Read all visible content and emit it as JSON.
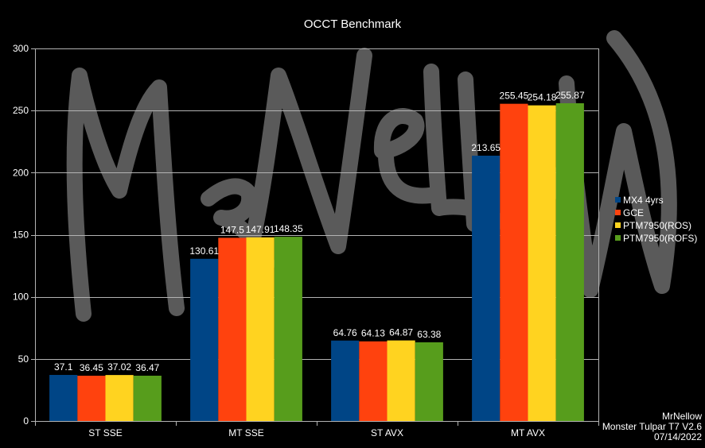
{
  "chart_data": {
    "type": "bar",
    "title": "OCCT Benchmark",
    "xlabel": "",
    "ylabel": "",
    "ylim": [
      0,
      300
    ],
    "yticks": [
      0,
      50,
      100,
      150,
      200,
      250,
      300
    ],
    "grid": true,
    "legend_position": "right",
    "categories": [
      "ST SSE",
      "MT SSE",
      "ST AVX",
      "MT AVX"
    ],
    "series": [
      {
        "name": "MX4 4yrs",
        "color": "#004586",
        "values": [
          37.1,
          130.61,
          64.76,
          213.65
        ]
      },
      {
        "name": "GCE",
        "color": "#ff420e",
        "values": [
          36.45,
          147.5,
          64.13,
          255.45
        ]
      },
      {
        "name": "PTM7950(ROS)",
        "color": "#ffd320",
        "values": [
          37.02,
          147.91,
          64.87,
          254.18
        ]
      },
      {
        "name": "PTM7950(ROFS)",
        "color": "#579d1c",
        "values": [
          36.47,
          148.35,
          63.38,
          255.87
        ]
      }
    ],
    "value_labels": [
      [
        "37.1",
        "130.61",
        "64.76",
        "213.65"
      ],
      [
        "36.45",
        "147.5",
        "64.13",
        "255.45"
      ],
      [
        "37.02",
        "147.91",
        "64.87",
        "254.18"
      ],
      [
        "36.47",
        "148.35",
        "63.38",
        "255.87"
      ]
    ]
  },
  "credit": {
    "author": "MrNellow",
    "device": "Monster Tulpar T7 V2.6",
    "date": "07/14/2022"
  },
  "watermark": {
    "text": "MrNellow",
    "color": "#6a6a6a"
  },
  "colors": {
    "background": "#000000",
    "gridline": "#b3b3b3",
    "text": "#ffffff"
  }
}
